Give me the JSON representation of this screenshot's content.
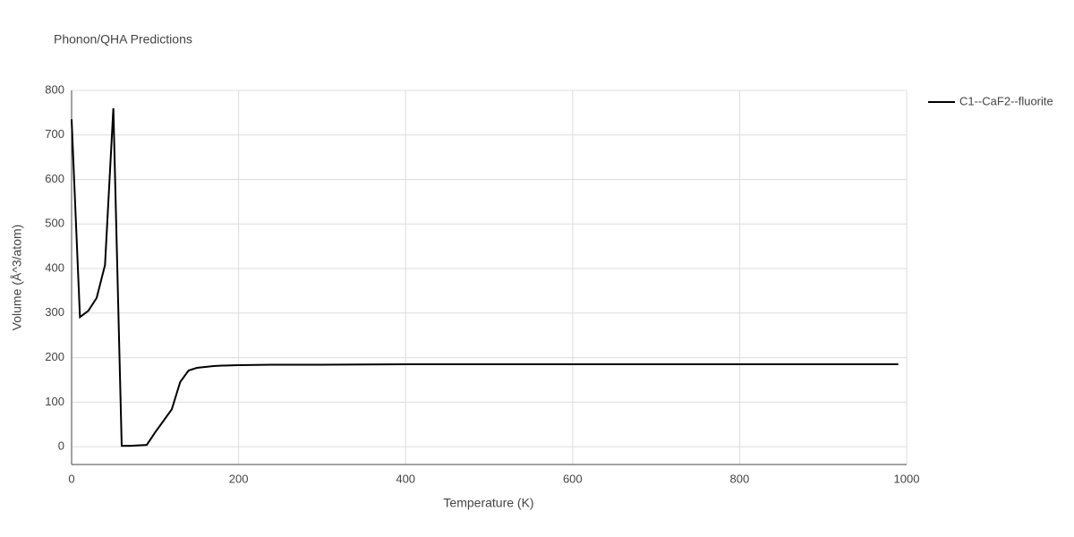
{
  "chart_data": {
    "type": "line",
    "title": "Phonon/QHA Predictions",
    "x_label": "Temperature (K)",
    "y_label": "Volume (Å^3/atom)",
    "x": [
      0,
      10,
      20,
      30,
      40,
      50,
      60,
      70,
      80,
      90,
      100,
      110,
      120,
      130,
      140,
      150,
      160,
      170,
      180,
      200,
      240,
      300,
      400,
      500,
      600,
      700,
      800,
      900,
      990
    ],
    "series": [
      {
        "name": "C1--CaF2--fluorite",
        "color": "#000000",
        "values": [
          735,
          291,
          305,
          334,
          408,
          760,
          2,
          2,
          3,
          4,
          32,
          58,
          84,
          145,
          171,
          177,
          179,
          181,
          182,
          183,
          184,
          184,
          185,
          185,
          185,
          185,
          185,
          185,
          185
        ]
      }
    ],
    "xlim": [
      0,
      1000
    ],
    "ylim": [
      -40,
      800
    ],
    "xticks": [
      0,
      200,
      400,
      600,
      800,
      1000
    ],
    "yticks": [
      0,
      100,
      200,
      300,
      400,
      500,
      600,
      700,
      800
    ],
    "grid": true,
    "legend": "right"
  }
}
